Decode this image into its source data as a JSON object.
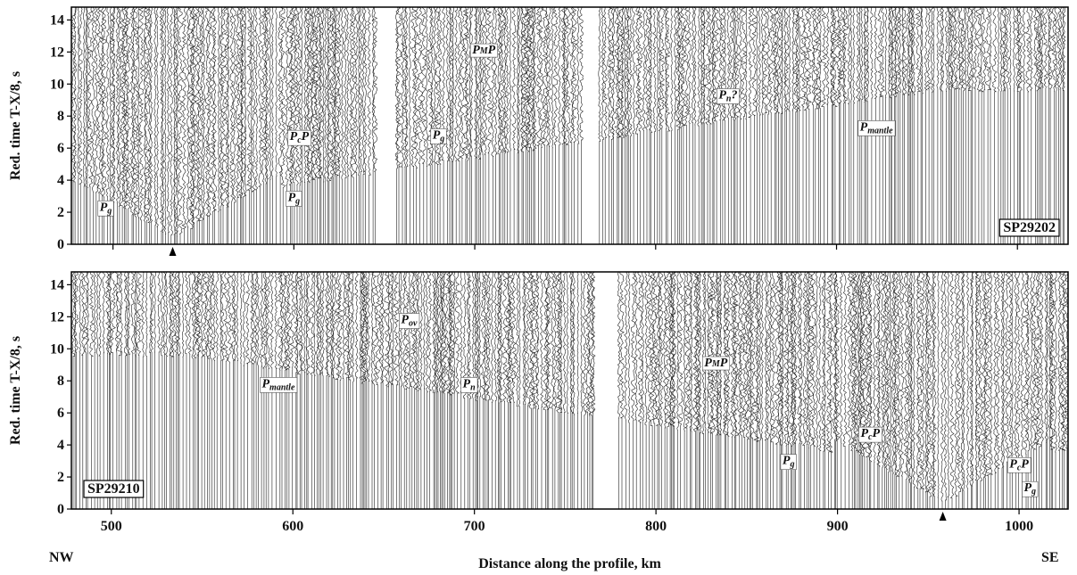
{
  "chart_data": [
    {
      "type": "seismic",
      "ylabel": "Red. time  T-X/8, s",
      "station": "SP29202",
      "xlim": [
        477,
        1028
      ],
      "ylim": [
        0,
        14.8
      ],
      "xticks": [
        500,
        600,
        700,
        800,
        900,
        1000
      ],
      "yticks": [
        0,
        2,
        4,
        6,
        8,
        10,
        12,
        14
      ],
      "annotations": [
        {
          "p": "P",
          "sub": "g"
        },
        {
          "p": "P",
          "sub": "c",
          "post": "P"
        },
        {
          "p": "P",
          "sub": "g"
        },
        {
          "p": "P",
          "sub": "M",
          "post": "P"
        },
        {
          "p": "P",
          "sub": "g"
        },
        {
          "p": "P",
          "sub": "n",
          "post": "?"
        },
        {
          "p": "P",
          "sub": "mantle"
        }
      ]
    },
    {
      "type": "seismic",
      "ylabel": "Red. time  T-X/8, s",
      "station": "SP29210",
      "xlabel": "Distance along the profile, km",
      "left_label": "NW",
      "right_label": "SE",
      "xlim": [
        478,
        1027
      ],
      "ylim": [
        0,
        14.8
      ],
      "xticks": [
        500,
        600,
        700,
        800,
        900,
        1000
      ],
      "yticks": [
        0,
        2,
        4,
        6,
        8,
        10,
        12,
        14
      ],
      "annotations": [
        {
          "p": "P",
          "sub": "mantle"
        },
        {
          "p": "P",
          "sub": "ov"
        },
        {
          "p": "P",
          "sub": "n"
        },
        {
          "p": "P",
          "sub": "M",
          "post": "P"
        },
        {
          "p": "P",
          "sub": "c",
          "post": "P"
        },
        {
          "p": "P",
          "sub": "g"
        },
        {
          "p": "P",
          "sub": "c",
          "post": "P"
        },
        {
          "p": "P",
          "sub": "g"
        }
      ]
    }
  ]
}
